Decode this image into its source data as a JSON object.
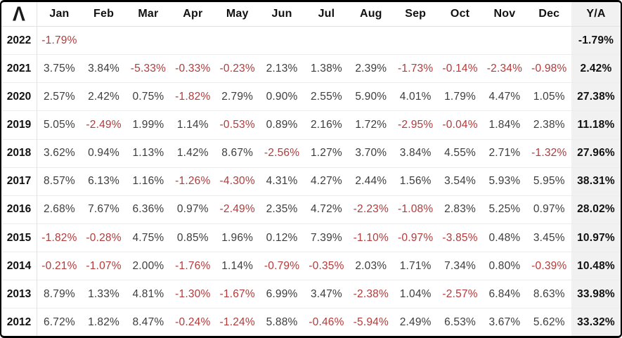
{
  "logo": {
    "glyph": "Λ"
  },
  "colors": {
    "frame": "#000000",
    "positive_text": "#3d3d3d",
    "negative_text": "#b23b3b",
    "header_text": "#111111",
    "ya_background": "#f1f1f1",
    "gridline": "#ededed"
  },
  "chart_data": {
    "type": "table",
    "columns": [
      "Jan",
      "Feb",
      "Mar",
      "Apr",
      "May",
      "Jun",
      "Jul",
      "Aug",
      "Sep",
      "Oct",
      "Nov",
      "Dec"
    ],
    "ya_label": "Y/A",
    "rows": [
      {
        "year": "2022",
        "values": [
          "-1.79%",
          "",
          "",
          "",
          "",
          "",
          "",
          "",
          "",
          "",
          "",
          ""
        ],
        "ya": "-1.79%"
      },
      {
        "year": "2021",
        "values": [
          "3.75%",
          "3.84%",
          "-5.33%",
          "-0.33%",
          "-0.23%",
          "2.13%",
          "1.38%",
          "2.39%",
          "-1.73%",
          "-0.14%",
          "-2.34%",
          "-0.98%"
        ],
        "ya": "2.42%"
      },
      {
        "year": "2020",
        "values": [
          "2.57%",
          "2.42%",
          "0.75%",
          "-1.82%",
          "2.79%",
          "0.90%",
          "2.55%",
          "5.90%",
          "4.01%",
          "1.79%",
          "4.47%",
          "1.05%"
        ],
        "ya": "27.38%"
      },
      {
        "year": "2019",
        "values": [
          "5.05%",
          "-2.49%",
          "1.99%",
          "1.14%",
          "-0.53%",
          "0.89%",
          "2.16%",
          "1.72%",
          "-2.95%",
          "-0.04%",
          "1.84%",
          "2.38%"
        ],
        "ya": "11.18%"
      },
      {
        "year": "2018",
        "values": [
          "3.62%",
          "0.94%",
          "1.13%",
          "1.42%",
          "8.67%",
          "-2.56%",
          "1.27%",
          "3.70%",
          "3.84%",
          "4.55%",
          "2.71%",
          "-1.32%"
        ],
        "ya": "27.96%"
      },
      {
        "year": "2017",
        "values": [
          "8.57%",
          "6.13%",
          "1.16%",
          "-1.26%",
          "-4.30%",
          "4.31%",
          "4.27%",
          "2.44%",
          "1.56%",
          "3.54%",
          "5.93%",
          "5.95%"
        ],
        "ya": "38.31%"
      },
      {
        "year": "2016",
        "values": [
          "2.68%",
          "7.67%",
          "6.36%",
          "0.97%",
          "-2.49%",
          "2.35%",
          "4.72%",
          "-2.23%",
          "-1.08%",
          "2.83%",
          "5.25%",
          "0.97%"
        ],
        "ya": "28.02%"
      },
      {
        "year": "2015",
        "values": [
          "-1.82%",
          "-0.28%",
          "4.75%",
          "0.85%",
          "1.96%",
          "0.12%",
          "7.39%",
          "-1.10%",
          "-0.97%",
          "-3.85%",
          "0.48%",
          "3.45%"
        ],
        "ya": "10.97%"
      },
      {
        "year": "2014",
        "values": [
          "-0.21%",
          "-1.07%",
          "2.00%",
          "-1.76%",
          "1.14%",
          "-0.79%",
          "-0.35%",
          "2.03%",
          "1.71%",
          "7.34%",
          "0.80%",
          "-0.39%"
        ],
        "ya": "10.48%"
      },
      {
        "year": "2013",
        "values": [
          "8.79%",
          "1.33%",
          "4.81%",
          "-1.30%",
          "-1.67%",
          "6.99%",
          "3.47%",
          "-2.38%",
          "1.04%",
          "-2.57%",
          "6.84%",
          "8.63%"
        ],
        "ya": "33.98%"
      },
      {
        "year": "2012",
        "values": [
          "6.72%",
          "1.82%",
          "8.47%",
          "-0.24%",
          "-1.24%",
          "5.88%",
          "-0.46%",
          "-5.94%",
          "2.49%",
          "6.53%",
          "3.67%",
          "5.62%"
        ],
        "ya": "33.32%"
      }
    ]
  }
}
